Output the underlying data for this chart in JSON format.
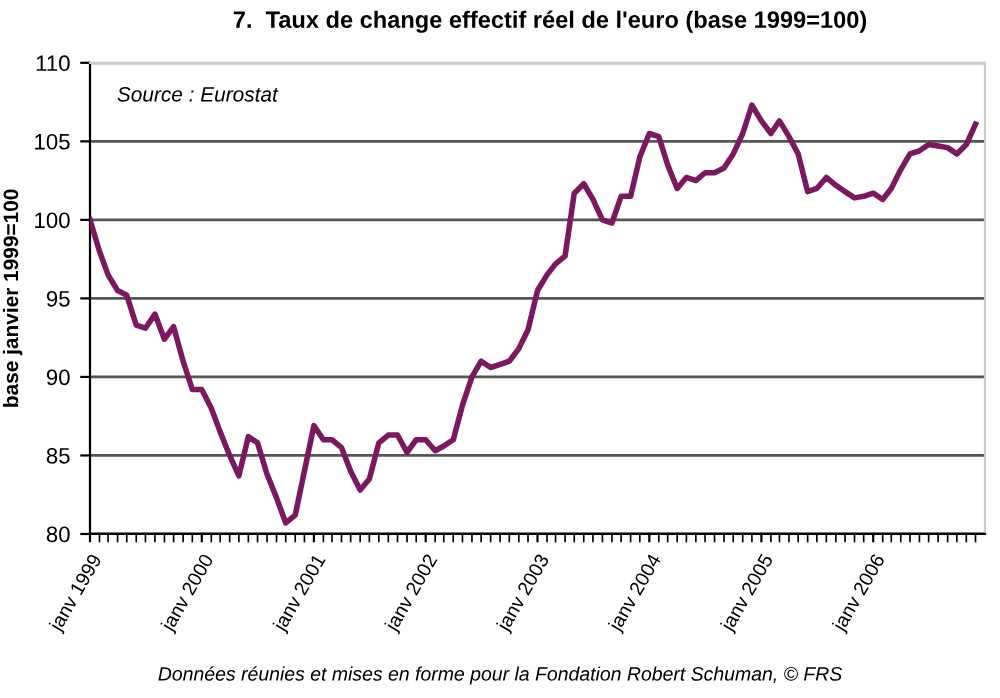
{
  "chart_data": {
    "type": "line",
    "title": "7.  Taux de change effectif réel de l'euro (base 1999=100)",
    "ylabel": "base janvier 1999=100",
    "annotations": [
      "Source : Eurostat",
      "Données réunies et mises en forme pour la Fondation Robert Schuman, © FRS"
    ],
    "x": [
      "1999-01",
      "1999-02",
      "1999-03",
      "1999-04",
      "1999-05",
      "1999-06",
      "1999-07",
      "1999-08",
      "1999-09",
      "1999-10",
      "1999-11",
      "1999-12",
      "2000-01",
      "2000-02",
      "2000-03",
      "2000-04",
      "2000-05",
      "2000-06",
      "2000-07",
      "2000-08",
      "2000-09",
      "2000-10",
      "2000-11",
      "2000-12",
      "2001-01",
      "2001-02",
      "2001-03",
      "2001-04",
      "2001-05",
      "2001-06",
      "2001-07",
      "2001-08",
      "2001-09",
      "2001-10",
      "2001-11",
      "2001-12",
      "2002-01",
      "2002-02",
      "2002-03",
      "2002-04",
      "2002-05",
      "2002-06",
      "2002-07",
      "2002-08",
      "2002-09",
      "2002-10",
      "2002-11",
      "2002-12",
      "2003-01",
      "2003-02",
      "2003-03",
      "2003-04",
      "2003-05",
      "2003-06",
      "2003-07",
      "2003-08",
      "2003-09",
      "2003-10",
      "2003-11",
      "2003-12",
      "2004-01",
      "2004-02",
      "2004-03",
      "2004-04",
      "2004-05",
      "2004-06",
      "2004-07",
      "2004-08",
      "2004-09",
      "2004-10",
      "2004-11",
      "2004-12",
      "2005-01",
      "2005-02",
      "2005-03",
      "2005-04",
      "2005-05",
      "2005-06",
      "2005-07",
      "2005-08",
      "2005-09",
      "2005-10",
      "2005-11",
      "2005-12",
      "2006-01",
      "2006-02",
      "2006-03",
      "2006-04",
      "2006-05",
      "2006-06",
      "2006-07",
      "2006-08",
      "2006-09",
      "2006-10",
      "2006-11",
      "2006-12"
    ],
    "series": [
      {
        "color": "#7a1860",
        "values": [
          100,
          98,
          96.5,
          95.5,
          95.2,
          93.3,
          93.1,
          94,
          92.4,
          93.2,
          91,
          89.2,
          89.2,
          88,
          86.5,
          85,
          83.7,
          86.2,
          85.8,
          83.8,
          82.3,
          80.7,
          81.2,
          84,
          86.9,
          86,
          86,
          85.5,
          84,
          82.8,
          83.5,
          85.8,
          86.3,
          86.3,
          85.2,
          86,
          86,
          85.3,
          85.6,
          86,
          88.2,
          90,
          91,
          90.6,
          90.8,
          91,
          91.8,
          93,
          95.5,
          96.5,
          97.2,
          97.7,
          101.7,
          102.3,
          101.3,
          100,
          99.8,
          101.5,
          101.5,
          104,
          105.5,
          105.3,
          103.5,
          102,
          102.7,
          102.5,
          103,
          103,
          103.3,
          104.2,
          105.5,
          107.3,
          106.3,
          105.5,
          106.3,
          105.3,
          104.2,
          101.8,
          102,
          102.7,
          102.2,
          101.8,
          101.4,
          101.5,
          101.7,
          101.3,
          102,
          103.2,
          104.2,
          104.4,
          104.8,
          104.7,
          104.6,
          104.2,
          104.8,
          106.1
        ]
      }
    ],
    "xlim": [
      "1999-01",
      "2007-01"
    ],
    "xticks": [
      {
        "value": "1999-01",
        "label": "janv 1999"
      },
      {
        "value": "2000-01",
        "label": "janv 2000"
      },
      {
        "value": "2001-01",
        "label": "janv 2001"
      },
      {
        "value": "2002-01",
        "label": "janv 2002"
      },
      {
        "value": "2003-01",
        "label": "janv 2003"
      },
      {
        "value": "2004-01",
        "label": "janv 2004"
      },
      {
        "value": "2005-01",
        "label": "janv 2005"
      },
      {
        "value": "2006-01",
        "label": "janv 2006"
      }
    ],
    "ylim": [
      80,
      110
    ],
    "yticks": [
      80,
      85,
      90,
      95,
      100,
      105,
      110
    ],
    "grid": "y",
    "legend": false,
    "marker": "none",
    "line_style": "solid"
  }
}
